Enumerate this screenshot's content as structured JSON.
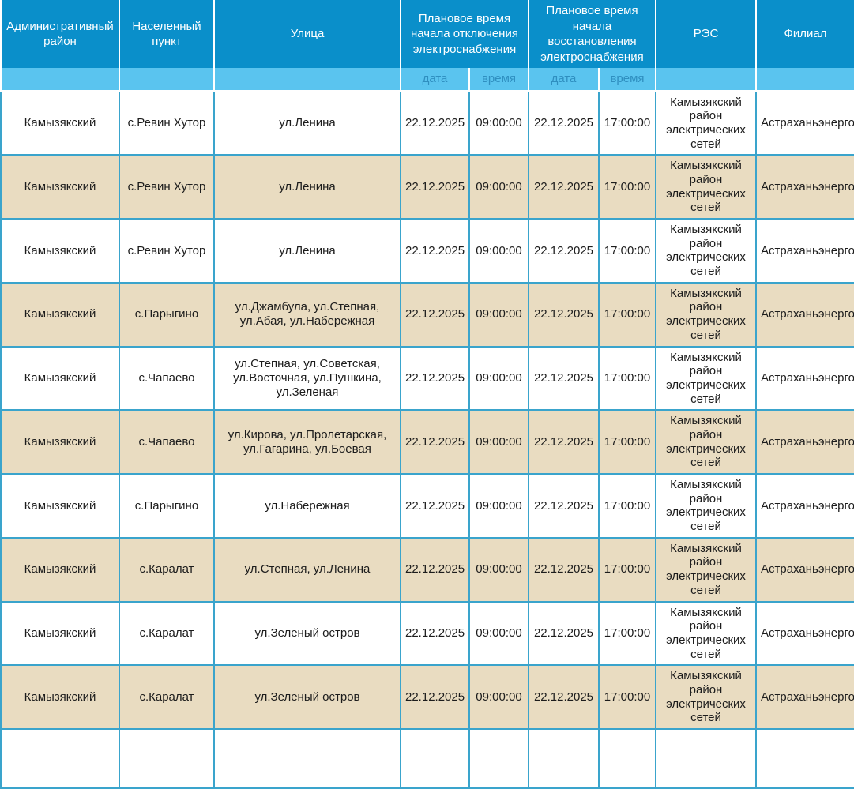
{
  "colors": {
    "header_bg": "#0a8fca",
    "subheader_bg": "#5ac4ef",
    "subheader_text": "#2f8fc0",
    "row_alt_bg": "#e9dcc1",
    "border": "#3aa4cc"
  },
  "table": {
    "headers": {
      "district": "Административный район",
      "settlement": "Населенный пункт",
      "street": "Улица",
      "outage_start": "Плановое время начала отключения электроснабжения",
      "restore_start": "Плановое время начала восстановления электроснабжения",
      "res": "РЭС",
      "branch": "Филиал"
    },
    "subheaders": {
      "outage_date": "дата",
      "outage_time": "время",
      "restore_date": "дата",
      "restore_time": "время"
    },
    "rows": [
      [
        "Камызякский",
        "с.Ревин Хутор",
        "ул.Ленина",
        "22.12.2025",
        "09:00:00",
        "22.12.2025",
        "17:00:00",
        "Камызякский район электрических сетей",
        "Астраханьэнерго"
      ],
      [
        "Камызякский",
        "с.Ревин Хутор",
        "ул.Ленина",
        "22.12.2025",
        "09:00:00",
        "22.12.2025",
        "17:00:00",
        "Камызякский район электрических сетей",
        "Астраханьэнерго"
      ],
      [
        "Камызякский",
        "с.Ревин Хутор",
        "ул.Ленина",
        "22.12.2025",
        "09:00:00",
        "22.12.2025",
        "17:00:00",
        "Камызякский район электрических сетей",
        "Астраханьэнерго"
      ],
      [
        "Камызякский",
        "с.Парыгино",
        "ул.Джамбула, ул.Степная, ул.Абая, ул.Набережная",
        "22.12.2025",
        "09:00:00",
        "22.12.2025",
        "17:00:00",
        "Камызякский район электрических сетей",
        "Астраханьэнерго"
      ],
      [
        "Камызякский",
        "с.Чапаево",
        "ул.Степная, ул.Советская, ул.Восточная, ул.Пушкина, ул.Зеленая",
        "22.12.2025",
        "09:00:00",
        "22.12.2025",
        "17:00:00",
        "Камызякский район электрических сетей",
        "Астраханьэнерго"
      ],
      [
        "Камызякский",
        "с.Чапаево",
        "ул.Кирова, ул.Пролетарская, ул.Гагарина, ул.Боевая",
        "22.12.2025",
        "09:00:00",
        "22.12.2025",
        "17:00:00",
        "Камызякский район электрических сетей",
        "Астраханьэнерго"
      ],
      [
        "Камызякский",
        "с.Парыгино",
        "ул.Набережная",
        "22.12.2025",
        "09:00:00",
        "22.12.2025",
        "17:00:00",
        "Камызякский район электрических сетей",
        "Астраханьэнерго"
      ],
      [
        "Камызякский",
        "с.Каралат",
        "ул.Степная, ул.Ленина",
        "22.12.2025",
        "09:00:00",
        "22.12.2025",
        "17:00:00",
        "Камызякский район электрических сетей",
        "Астраханьэнерго"
      ],
      [
        "Камызякский",
        "с.Каралат",
        "ул.Зеленый остров",
        "22.12.2025",
        "09:00:00",
        "22.12.2025",
        "17:00:00",
        "Камызякский район электрических сетей",
        "Астраханьэнерго"
      ],
      [
        "Камызякский",
        "с.Каралат",
        "ул.Зеленый остров",
        "22.12.2025",
        "09:00:00",
        "22.12.2025",
        "17:00:00",
        "Камызякский район электрических сетей",
        "Астраханьэнерго"
      ]
    ]
  }
}
